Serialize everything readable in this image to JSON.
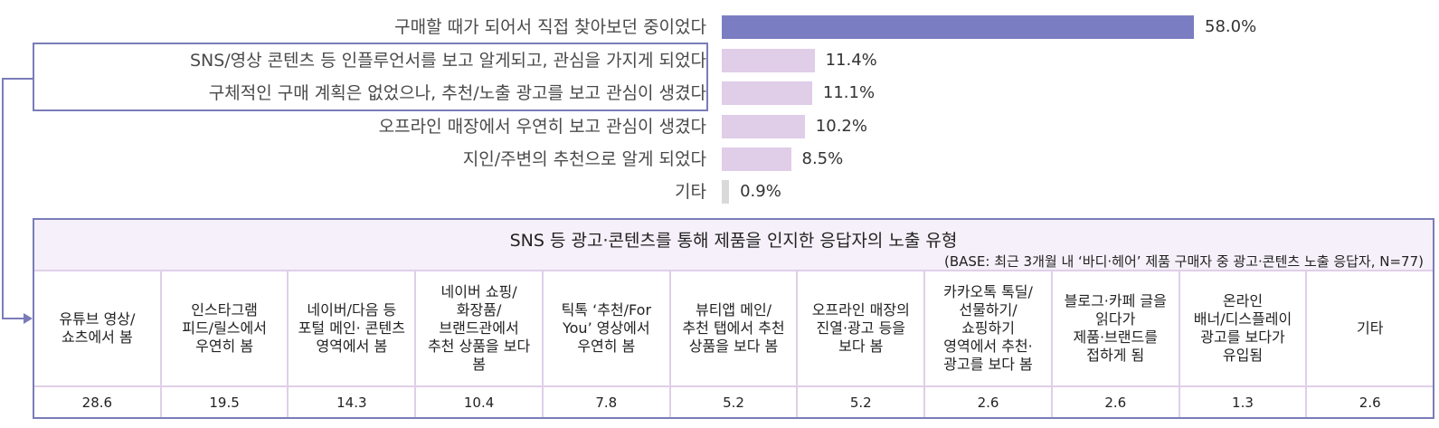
{
  "chart_data": [
    {
      "type": "bar",
      "orientation": "horizontal",
      "title": "",
      "categories": [
        "구매할 때가 되어서 직접 찾아보던 중이었다",
        "SNS/영상 콘텐츠 등 인플루언서를 보고 알게되고, 관심을 가지게 되었다",
        "구체적인 구매 계획은 없었으나, 추천/노출 광고를 보고 관심이 생겼다",
        "오프라인 매장에서 우연히 보고 관심이 생겼다",
        "지인/주변의 추천으로 알게 되었다",
        "기타"
      ],
      "values": [
        58.0,
        11.4,
        11.1,
        10.2,
        8.5,
        0.9
      ],
      "value_labels": [
        "58.0%",
        "11.4%",
        "11.1%",
        "10.2%",
        "8.5%",
        "0.9%"
      ],
      "colors": [
        "#7b7dc2",
        "#e0cde8",
        "#e0cde8",
        "#e0cde8",
        "#e0cde8",
        "#d9d9d9"
      ],
      "highlighted_indices": [
        1,
        2
      ],
      "xlabel": "",
      "ylabel": "",
      "grid": false,
      "legend": null
    },
    {
      "type": "table",
      "title": "SNS 등 광고·콘텐츠를 통해 제품을 인지한 응답자의 노출 유형",
      "subtitle": "(BASE: 최근 3개월 내 ‘바디·헤어’ 제품 구매자 중 광고·콘텐츠 노출 응답자, N=77)",
      "categories": [
        "유튜브 영상/ 쇼츠에서 봄",
        "인스타그램 피드/릴스에서 우연히 봄",
        "네이버/다음 등 포털 메인· 콘텐츠 영역에서 봄",
        "네이버 쇼핑/ 화장품/ 브랜드관에서 추천 상품을 보다 봄",
        "틱톡 ‘추천/For You’ 영상에서 우연히 봄",
        "뷰티앱 메인/ 추천 탭에서 추천 상품을 보다 봄",
        "오프라인 매장의 진열·광고 등을 보다 봄",
        "카카오톡 톡딜/ 선물하기/ 쇼핑하기 영역에서 추천· 광고를 보다 봄",
        "블로그·카페 글을 읽다가 제품·브랜드를 접하게 됨",
        "온라인 배너/디스플레이 광고를 보다가 유입됨",
        "기타"
      ],
      "values": [
        28.6,
        19.5,
        14.3,
        10.4,
        7.8,
        5.2,
        5.2,
        2.6,
        2.6,
        1.3,
        2.6
      ]
    }
  ],
  "bars": [
    {
      "label": "구매할 때가 되어서 직접 찾아보던 중이었다",
      "value": "58.0%",
      "pct": 58.0,
      "color": "#7b7dc2"
    },
    {
      "label": "SNS/영상 콘텐츠 등 인플루언서를 보고 알게되고, 관심을 가지게 되었다",
      "value": "11.4%",
      "pct": 11.4,
      "color": "#e0cde8"
    },
    {
      "label": "구체적인 구매 계획은 없었으나, 추천/노출 광고를 보고 관심이 생겼다",
      "value": "11.1%",
      "pct": 11.1,
      "color": "#e0cde8"
    },
    {
      "label": "오프라인 매장에서 우연히 보고 관심이 생겼다",
      "value": "10.2%",
      "pct": 10.2,
      "color": "#e0cde8"
    },
    {
      "label": "지인/주변의 추천으로 알게 되었다",
      "value": "8.5%",
      "pct": 8.5,
      "color": "#e0cde8"
    },
    {
      "label": "기타",
      "value": "0.9%",
      "pct": 0.9,
      "color": "#d9d9d9"
    }
  ],
  "table": {
    "title": "SNS 등 광고·콘텐츠를 통해 제품을 인지한 응답자의 노출 유형",
    "base": "(BASE: 최근 3개월 내 ‘바디·헤어’ 제품 구매자 중 광고·콘텐츠 노출 응답자, N=77)",
    "columns": [
      {
        "label": "유튜브 영상/\n쇼츠에서 봄",
        "value": "28.6"
      },
      {
        "label": "인스타그램\n피드/릴스에서\n우연히 봄",
        "value": "19.5"
      },
      {
        "label": "네이버/다음 등\n포털 메인· 콘텐츠\n영역에서 봄",
        "value": "14.3"
      },
      {
        "label": "네이버 쇼핑/\n화장품/\n브랜드관에서\n추천 상품을 보다\n봄",
        "value": "10.4"
      },
      {
        "label": "틱톡 ‘추천/For\nYou’ 영상에서\n우연히 봄",
        "value": "7.8"
      },
      {
        "label": "뷰티앱 메인/\n추천 탭에서 추천\n상품을 보다 봄",
        "value": "5.2"
      },
      {
        "label": "오프라인 매장의\n진열·광고 등을\n보다 봄",
        "value": "5.2"
      },
      {
        "label": "카카오톡 톡딜/\n선물하기/\n쇼핑하기\n영역에서 추천·\n광고를 보다 봄",
        "value": "2.6"
      },
      {
        "label": "블로그·카페 글을\n읽다가\n제품·브랜드를\n접하게 됨",
        "value": "2.6"
      },
      {
        "label": "온라인\n배너/디스플레이\n광고를 보다가\n유입됨",
        "value": "1.3"
      },
      {
        "label": "기타",
        "value": "2.6"
      }
    ]
  },
  "colors": {
    "accent": "#7a7cb8",
    "primary_bar": "#7b7dc2",
    "secondary_bar": "#e0cde8",
    "other_bar": "#d9d9d9",
    "table_header_bg": "#f5f0f9",
    "table_grid": "#e0cfe8"
  }
}
